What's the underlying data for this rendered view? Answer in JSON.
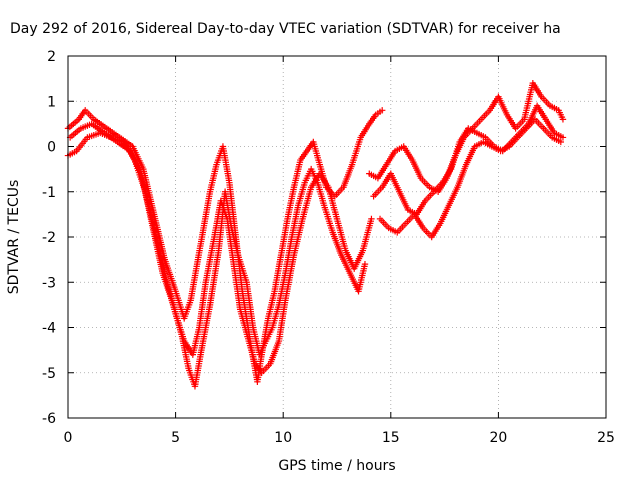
{
  "chart_data": {
    "type": "scatter",
    "title": "Day 292 of 2016, Sidereal Day-to-day VTEC variation (SDTVAR) for receiver ha",
    "xlabel": "GPS time / hours",
    "ylabel": "SDTVAR / TECUs",
    "xlim": [
      0,
      25
    ],
    "ylim": [
      -6,
      2
    ],
    "xticks": [
      0,
      5,
      10,
      15,
      20,
      25
    ],
    "yticks": [
      2,
      1,
      0,
      -1,
      -2,
      -3,
      -4,
      -5,
      -6
    ],
    "grid": true,
    "marker": "plus",
    "color": "#ff0000",
    "series": [
      {
        "x": [
          0.0,
          0.5,
          0.8,
          1.2,
          1.8,
          2.4,
          3.0,
          3.5,
          4.0,
          4.5,
          5.0,
          5.4,
          5.7,
          6.0,
          6.3,
          6.6,
          6.9,
          7.2,
          7.5,
          7.8,
          8.1,
          8.5,
          8.8,
          9.0,
          9.3,
          9.6,
          9.9,
          10.2,
          10.5,
          10.8,
          11.1,
          11.4,
          11.7,
          12.0,
          12.4,
          12.8,
          13.2,
          13.6,
          14.0,
          14.3,
          14.6
        ],
        "y": [
          0.4,
          0.6,
          0.8,
          0.6,
          0.4,
          0.2,
          0.0,
          -0.5,
          -1.5,
          -2.5,
          -3.2,
          -3.8,
          -3.4,
          -2.6,
          -1.8,
          -1.0,
          -0.4,
          0.0,
          -0.8,
          -2.0,
          -3.2,
          -4.4,
          -5.2,
          -4.6,
          -3.8,
          -3.2,
          -2.4,
          -1.6,
          -0.9,
          -0.3,
          -0.1,
          0.1,
          -0.4,
          -0.9,
          -1.1,
          -0.9,
          -0.4,
          0.2,
          0.5,
          0.7,
          0.8
        ]
      },
      {
        "x": [
          0.0,
          0.4,
          0.9,
          1.5,
          2.0,
          2.6,
          3.1,
          3.6,
          4.1,
          4.6,
          5.0,
          5.4,
          5.8,
          6.1,
          6.4,
          6.8,
          7.1,
          7.4,
          7.7,
          8.0,
          8.4,
          8.7,
          9.0,
          9.4,
          9.8,
          10.1,
          10.5,
          10.9,
          11.3,
          11.7,
          12.1,
          12.5,
          12.9,
          13.3,
          13.7,
          14.1
        ],
        "y": [
          -0.2,
          -0.1,
          0.2,
          0.3,
          0.2,
          0.1,
          -0.3,
          -1.0,
          -2.0,
          -3.0,
          -3.7,
          -4.3,
          -4.6,
          -4.0,
          -3.0,
          -2.0,
          -1.2,
          -1.6,
          -2.6,
          -3.6,
          -4.3,
          -4.8,
          -5.0,
          -4.8,
          -4.3,
          -3.4,
          -2.4,
          -1.6,
          -0.9,
          -0.6,
          -0.9,
          -1.6,
          -2.3,
          -2.7,
          -2.3,
          -1.6
        ]
      },
      {
        "x": [
          0.1,
          0.6,
          1.1,
          1.7,
          2.3,
          2.9,
          3.4,
          3.9,
          4.4,
          4.9,
          5.3,
          5.6,
          5.9,
          6.2,
          6.6,
          7.0,
          7.3,
          7.6,
          7.9,
          8.3,
          8.6,
          8.9,
          9.2,
          9.5,
          9.8,
          10.1,
          10.4,
          10.7,
          11.0,
          11.3,
          11.6,
          11.9,
          12.3,
          12.7,
          13.1,
          13.5,
          13.8
        ],
        "y": [
          0.2,
          0.4,
          0.5,
          0.3,
          0.1,
          -0.1,
          -0.6,
          -1.7,
          -2.8,
          -3.5,
          -4.2,
          -4.9,
          -5.3,
          -4.5,
          -3.5,
          -2.3,
          -1.0,
          -1.8,
          -2.4,
          -3.0,
          -4.0,
          -4.6,
          -4.3,
          -4.0,
          -3.5,
          -2.8,
          -2.0,
          -1.3,
          -0.8,
          -0.5,
          -0.8,
          -1.3,
          -1.9,
          -2.4,
          -2.8,
          -3.2,
          -2.6
        ]
      },
      {
        "x": [
          14.0,
          14.4,
          14.8,
          15.2,
          15.6,
          16.0,
          16.4,
          16.8,
          17.2,
          17.6,
          18.0,
          18.4,
          18.8,
          19.2,
          19.6,
          20.0,
          20.4,
          20.8,
          21.2,
          21.6,
          22.0,
          22.4,
          22.8,
          23.0
        ],
        "y": [
          -0.6,
          -0.7,
          -0.4,
          -0.1,
          0.0,
          -0.3,
          -0.7,
          -0.9,
          -1.0,
          -0.7,
          -0.2,
          0.2,
          0.4,
          0.6,
          0.8,
          1.1,
          0.7,
          0.4,
          0.6,
          1.4,
          1.1,
          0.9,
          0.8,
          0.6
        ]
      },
      {
        "x": [
          14.2,
          14.6,
          15.0,
          15.4,
          15.8,
          16.2,
          16.6,
          17.0,
          17.4,
          17.8,
          18.2,
          18.6,
          19.0,
          19.4,
          19.8,
          20.2,
          20.6,
          21.0,
          21.4,
          21.8,
          22.2,
          22.6,
          23.0
        ],
        "y": [
          -1.1,
          -0.9,
          -0.6,
          -1.0,
          -1.4,
          -1.5,
          -1.2,
          -1.0,
          -0.8,
          -0.5,
          0.1,
          0.4,
          0.3,
          0.2,
          0.0,
          -0.1,
          0.1,
          0.3,
          0.5,
          0.9,
          0.6,
          0.3,
          0.2
        ]
      },
      {
        "x": [
          14.5,
          14.9,
          15.3,
          15.7,
          16.1,
          16.5,
          16.9,
          17.3,
          17.7,
          18.1,
          18.5,
          18.9,
          19.3,
          19.7,
          20.1,
          20.5,
          20.9,
          21.3,
          21.7,
          22.1,
          22.5,
          22.9
        ],
        "y": [
          -1.6,
          -1.8,
          -1.9,
          -1.7,
          -1.5,
          -1.8,
          -2.0,
          -1.7,
          -1.3,
          -0.9,
          -0.4,
          0.0,
          0.1,
          0.0,
          -0.1,
          0.0,
          0.2,
          0.4,
          0.6,
          0.4,
          0.2,
          0.1
        ]
      }
    ]
  }
}
